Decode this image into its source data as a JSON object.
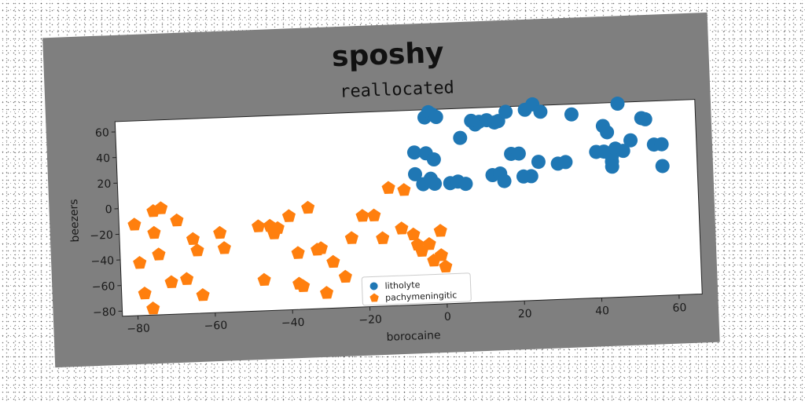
{
  "chart_data": {
    "type": "scatter",
    "title": "sposhy",
    "subtitle": "reallocated",
    "xlabel": "borocaine",
    "ylabel": "beezers",
    "xlim": [
      -84,
      66
    ],
    "ylim": [
      -84,
      68
    ],
    "xticks": [
      -80,
      -60,
      -40,
      -20,
      0,
      20,
      40,
      60
    ],
    "yticks": [
      -80,
      -60,
      -40,
      -20,
      0,
      20,
      40,
      60
    ],
    "grid": false,
    "legend_position": "lower-center",
    "series": [
      {
        "name": "litholyte",
        "color": "#1f77b4",
        "marker": "circle",
        "points": [
          [
            -4,
            62
          ],
          [
            -3,
            66
          ],
          [
            -2,
            64
          ],
          [
            -1,
            62
          ],
          [
            5,
            45
          ],
          [
            8,
            58
          ],
          [
            9,
            55
          ],
          [
            10,
            57
          ],
          [
            12,
            58
          ],
          [
            14,
            56
          ],
          [
            15,
            57
          ],
          [
            17,
            64
          ],
          [
            22,
            65
          ],
          [
            24,
            69
          ],
          [
            26,
            63
          ],
          [
            34,
            60
          ],
          [
            42,
            50
          ],
          [
            43,
            45
          ],
          [
            46,
            67
          ],
          [
            52,
            55
          ],
          [
            53,
            54
          ],
          [
            -7,
            35
          ],
          [
            -4,
            34
          ],
          [
            -2,
            29
          ],
          [
            -7,
            18
          ],
          [
            -5,
            10
          ],
          [
            -3,
            14
          ],
          [
            -2,
            10
          ],
          [
            2,
            10
          ],
          [
            4,
            11
          ],
          [
            6,
            9
          ],
          [
            13,
            15
          ],
          [
            15,
            16
          ],
          [
            16,
            10
          ],
          [
            18,
            31
          ],
          [
            20,
            31
          ],
          [
            21,
            13
          ],
          [
            23,
            13
          ],
          [
            25,
            24
          ],
          [
            30,
            22
          ],
          [
            32,
            23
          ],
          [
            40,
            30
          ],
          [
            42,
            30
          ],
          [
            44,
            26
          ],
          [
            45,
            32
          ],
          [
            44,
            22
          ],
          [
            44,
            18
          ],
          [
            47,
            30
          ],
          [
            49,
            38
          ],
          [
            55,
            34
          ],
          [
            57,
            34
          ],
          [
            57,
            17
          ]
        ]
      },
      {
        "name": "pachymeningitic",
        "color": "#ff7f0e",
        "marker": "pentagon",
        "points": [
          [
            -80,
            -13
          ],
          [
            -79,
            -43
          ],
          [
            -78,
            -67
          ],
          [
            -76,
            -79
          ],
          [
            -75,
            -3
          ],
          [
            -73,
            -1
          ],
          [
            -75,
            -20
          ],
          [
            -74,
            -37
          ],
          [
            -71,
            -59
          ],
          [
            -69,
            -11
          ],
          [
            -67,
            -57
          ],
          [
            -65,
            -26
          ],
          [
            -64,
            -35
          ],
          [
            -63,
            -70
          ],
          [
            -58,
            -22
          ],
          [
            -57,
            -34
          ],
          [
            -48,
            -18
          ],
          [
            -47,
            -60
          ],
          [
            -45,
            -18
          ],
          [
            -44,
            -24
          ],
          [
            -43,
            -20
          ],
          [
            -40,
            -11
          ],
          [
            -38,
            -64
          ],
          [
            -37,
            -66
          ],
          [
            -38,
            -40
          ],
          [
            -35,
            -5
          ],
          [
            -33,
            -38
          ],
          [
            -32,
            -37
          ],
          [
            -31,
            -72
          ],
          [
            -29,
            -48
          ],
          [
            -26,
            -60
          ],
          [
            -24,
            -30
          ],
          [
            -21,
            -13
          ],
          [
            -18,
            -13
          ],
          [
            -16,
            -31
          ],
          [
            -14,
            8
          ],
          [
            -11,
            -24
          ],
          [
            -10,
            6
          ],
          [
            -8,
            -29
          ],
          [
            -7,
            -37
          ],
          [
            -6,
            -42
          ],
          [
            -4,
            -37
          ],
          [
            -3,
            -50
          ],
          [
            -1,
            -46
          ],
          [
            -1,
            -27
          ],
          [
            0,
            -55
          ]
        ]
      }
    ]
  }
}
